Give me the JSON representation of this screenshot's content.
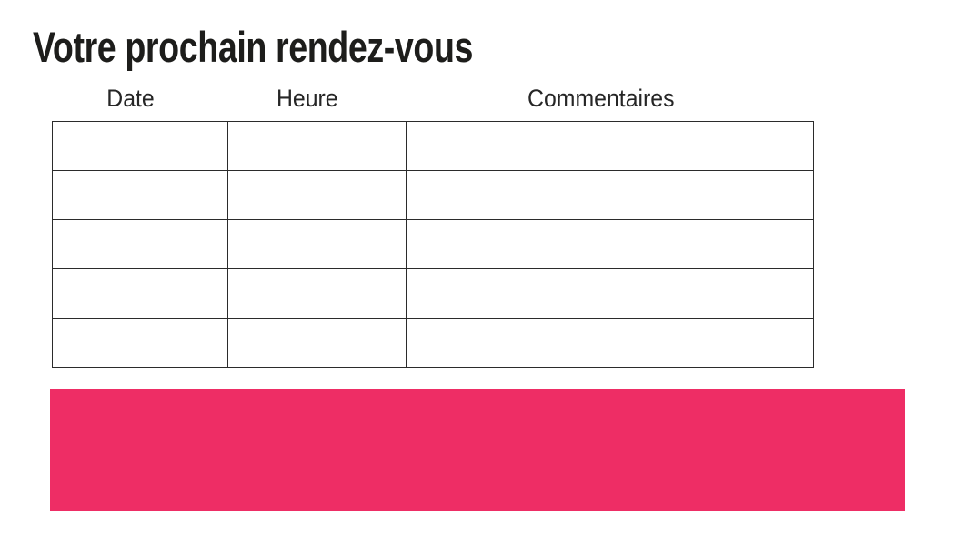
{
  "page": {
    "title": "Votre prochain rendez-vous"
  },
  "table": {
    "headers": [
      "Date",
      "Heure",
      "Commentaires"
    ],
    "rows": [
      [
        "",
        "",
        ""
      ],
      [
        "",
        "",
        ""
      ],
      [
        "",
        "",
        ""
      ],
      [
        "",
        "",
        ""
      ],
      [
        "",
        "",
        ""
      ]
    ]
  },
  "colors": {
    "banner_pink": "#EE2D65",
    "title_black": "#1D1D1B",
    "table_border": "#2B2B2B"
  }
}
